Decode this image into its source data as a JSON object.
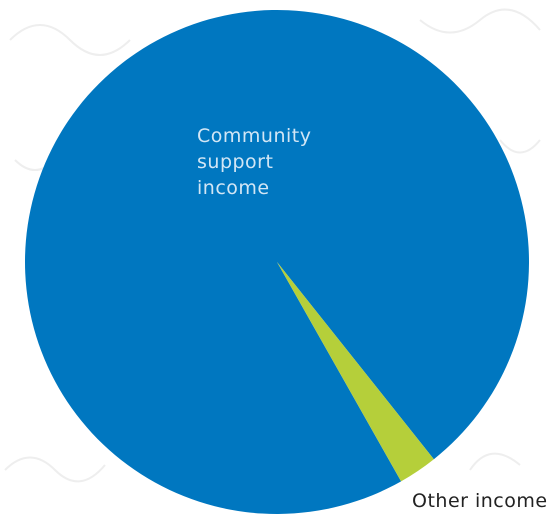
{
  "chart_data": {
    "type": "pie",
    "title": "",
    "slices": [
      {
        "label": "Community support income",
        "label_lines": [
          "Community",
          "support",
          "income"
        ],
        "value": 97.5,
        "color": "#0077c0",
        "label_color": "#d2e6f5"
      },
      {
        "label": "Other income",
        "label_lines": [
          "Other income"
        ],
        "value": 2.5,
        "color": "#b5cf3a",
        "label_color": "#222222"
      }
    ]
  }
}
